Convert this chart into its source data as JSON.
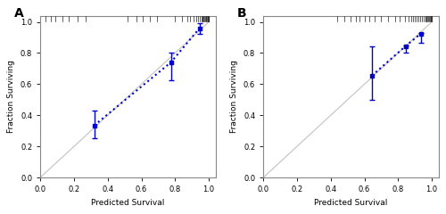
{
  "panel_A": {
    "label": "A",
    "points_x": [
      0.32,
      0.775,
      0.945
    ],
    "points_y": [
      0.335,
      0.74,
      0.96
    ],
    "yerr_low": [
      0.085,
      0.115,
      0.035
    ],
    "yerr_high": [
      0.095,
      0.065,
      0.03
    ],
    "rug_x": [
      0.03,
      0.06,
      0.09,
      0.13,
      0.17,
      0.22,
      0.27,
      0.52,
      0.57,
      0.61,
      0.65,
      0.69,
      0.8,
      0.84,
      0.87,
      0.89,
      0.91,
      0.925,
      0.935,
      0.945,
      0.955,
      0.96,
      0.965,
      0.97,
      0.975,
      0.98,
      0.983,
      0.986,
      0.989,
      0.992,
      0.995,
      0.997,
      0.999,
      1.001
    ],
    "xlim": [
      0.0,
      1.04
    ],
    "ylim": [
      0.0,
      1.04
    ],
    "xticks": [
      0.0,
      0.2,
      0.4,
      0.6,
      0.8,
      1.0
    ],
    "yticks": [
      0.0,
      0.2,
      0.4,
      0.6,
      0.8,
      1.0
    ],
    "xlabel": "Predicted Survival",
    "ylabel": "Fraction Surviving"
  },
  "panel_B": {
    "label": "B",
    "points_x": [
      0.645,
      0.845,
      0.935
    ],
    "points_y": [
      0.655,
      0.845,
      0.925
    ],
    "yerr_low": [
      0.155,
      0.04,
      0.06
    ],
    "yerr_high": [
      0.19,
      0.005,
      0.005
    ],
    "rug_x": [
      0.44,
      0.48,
      0.52,
      0.55,
      0.57,
      0.6,
      0.63,
      0.66,
      0.7,
      0.74,
      0.78,
      0.81,
      0.84,
      0.86,
      0.88,
      0.89,
      0.9,
      0.91,
      0.92,
      0.93,
      0.94,
      0.95,
      0.96,
      0.965,
      0.97,
      0.975,
      0.98,
      0.985,
      0.99,
      0.993,
      0.996,
      0.998,
      1.001
    ],
    "xlim": [
      0.0,
      1.04
    ],
    "ylim": [
      0.0,
      1.04
    ],
    "xticks": [
      0.0,
      0.2,
      0.4,
      0.6,
      0.8,
      1.0
    ],
    "yticks": [
      0.0,
      0.2,
      0.4,
      0.6,
      0.8,
      1.0
    ],
    "xlabel": "Predicted Survival",
    "ylabel": "Fraction Surviving"
  },
  "line_color": "#0000cc",
  "diagonal_color": "#c8c8c8",
  "point_color": "#0000cc",
  "error_color": "#0000cc",
  "rug_color": "#222222",
  "bg_color": "#ffffff",
  "border_color": "#888888",
  "figsize": [
    5.0,
    2.4
  ],
  "dpi": 100
}
